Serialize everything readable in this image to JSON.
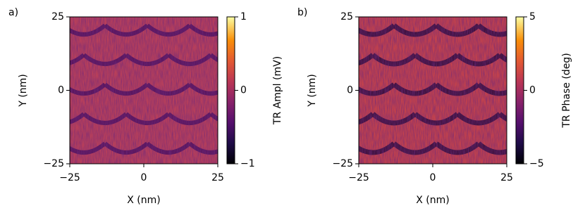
{
  "chart_data": [
    {
      "type": "heatmap",
      "panel_label": "a)",
      "xlabel": "X (nm)",
      "ylabel": "Y (nm)",
      "xlim": [
        -25,
        25
      ],
      "xticks": [
        {
          "value": -25,
          "label": "−25"
        },
        0,
        25
      ],
      "ylim": [
        -25,
        25
      ],
      "yticks": [
        {
          "value": -25,
          "label": "−25"
        },
        0,
        25
      ],
      "colormap": "inferno",
      "colorbar": {
        "label": "TR Ampl (mV)",
        "lim": [
          -1,
          1
        ],
        "ticks": [
          {
            "value": -1,
            "label": "−1"
          },
          0,
          1
        ]
      }
    },
    {
      "type": "heatmap",
      "panel_label": "b)",
      "xlabel": "X (nm)",
      "ylabel": "Y (nm)",
      "xlim": [
        -25,
        25
      ],
      "xticks": [
        {
          "value": -25,
          "label": "−25"
        },
        0,
        25
      ],
      "ylim": [
        -25,
        25
      ],
      "yticks": [
        {
          "value": -25,
          "label": "−25"
        },
        0,
        25
      ],
      "colormap": "inferno",
      "colorbar": {
        "label": "TR Phase (deg)",
        "lim": [
          -5,
          5
        ],
        "ticks": [
          {
            "value": -5,
            "label": "−5"
          },
          0,
          5
        ]
      }
    }
  ]
}
